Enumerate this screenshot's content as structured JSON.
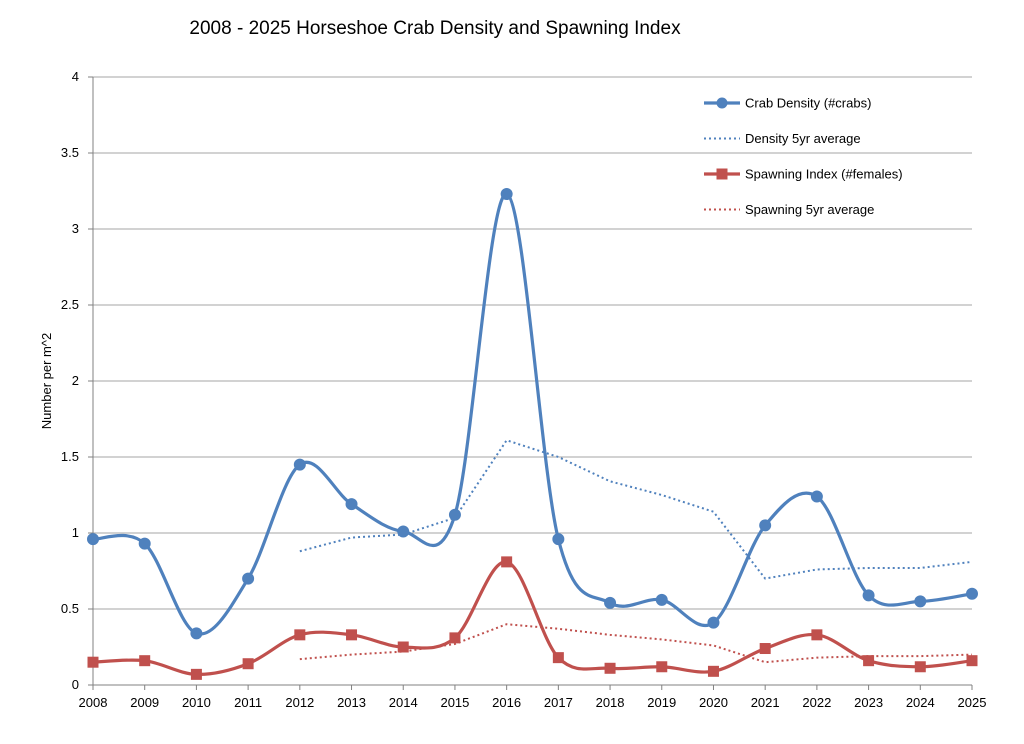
{
  "chart_data": {
    "type": "line",
    "title": "2008 - 2025 Horseshoe Crab Density and Spawning Index",
    "xlabel": "",
    "ylabel": "Number per m^2",
    "ylim": [
      0,
      4
    ],
    "yticks": [
      "0",
      "0.5",
      "1",
      "1.5",
      "2",
      "2.5",
      "3",
      "3.5",
      "4"
    ],
    "categories": [
      "2008",
      "2009",
      "2010",
      "2011",
      "2012",
      "2013",
      "2014",
      "2015",
      "2016",
      "2017",
      "2018",
      "2019",
      "2020",
      "2021",
      "2022",
      "2023",
      "2024",
      "2025"
    ],
    "grid": true,
    "legend_position": "top-right",
    "series": [
      {
        "name": "Crab Density (#crabs)",
        "color": "#4f81bd",
        "style": "solid",
        "marker": "circle",
        "smooth": true,
        "values": [
          0.96,
          0.93,
          0.34,
          0.7,
          1.45,
          1.19,
          1.01,
          1.12,
          3.23,
          0.96,
          0.54,
          0.56,
          0.41,
          1.05,
          1.24,
          0.59,
          0.55,
          0.6
        ]
      },
      {
        "name": "Density 5yr average",
        "color": "#4f81bd",
        "style": "dotted",
        "marker": "none",
        "smooth": false,
        "values": [
          null,
          null,
          null,
          null,
          0.88,
          0.97,
          0.99,
          1.1,
          1.61,
          1.5,
          1.34,
          1.25,
          1.14,
          0.7,
          0.76,
          0.77,
          0.77,
          0.81
        ]
      },
      {
        "name": "Spawning Index (#females)",
        "color": "#c0504d",
        "style": "solid",
        "marker": "square",
        "smooth": true,
        "values": [
          0.15,
          0.16,
          0.07,
          0.14,
          0.33,
          0.33,
          0.25,
          0.31,
          0.81,
          0.18,
          0.11,
          0.12,
          0.09,
          0.24,
          0.33,
          0.16,
          0.12,
          0.16
        ]
      },
      {
        "name": "Spawning 5yr average",
        "color": "#c0504d",
        "style": "dotted",
        "marker": "none",
        "smooth": false,
        "values": [
          null,
          null,
          null,
          null,
          0.17,
          0.2,
          0.22,
          0.27,
          0.4,
          0.37,
          0.33,
          0.3,
          0.26,
          0.15,
          0.18,
          0.19,
          0.19,
          0.2
        ]
      }
    ]
  }
}
